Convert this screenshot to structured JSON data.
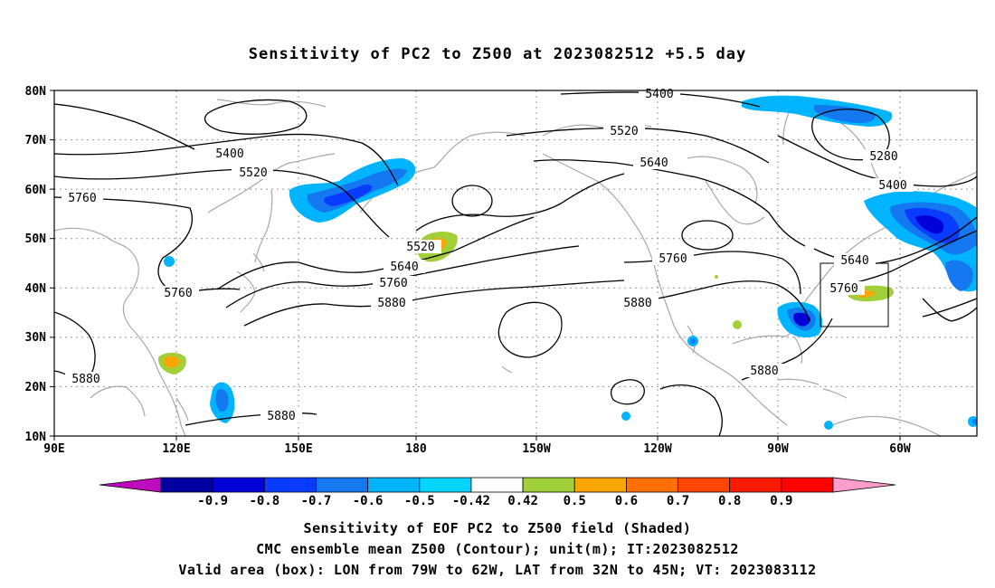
{
  "title": "Sensitivity of PC2 to Z500 at 2023082512 +5.5 day",
  "lat_labels": [
    "80N",
    "70N",
    "60N",
    "50N",
    "40N",
    "30N",
    "20N",
    "10N"
  ],
  "lon_labels": [
    "90E",
    "120E",
    "150E",
    "180",
    "150W",
    "120W",
    "90W",
    "60W"
  ],
  "contour_labels": [
    "5400",
    "5520",
    "5760",
    "5760",
    "5520",
    "5640",
    "5760",
    "5880",
    "5400",
    "5520",
    "5640",
    "5760",
    "5880",
    "5280",
    "5400",
    "5640",
    "5760",
    "5880",
    "5880",
    "5880"
  ],
  "colorbar": {
    "labels": [
      "-0.9",
      "-0.8",
      "-0.7",
      "-0.6",
      "-0.5",
      "-0.42",
      "0.42",
      "0.5",
      "0.6",
      "0.7",
      "0.8",
      "0.9"
    ],
    "colors": [
      "#be0bbe",
      "#0000a0",
      "#0000d8",
      "#0a3cff",
      "#1478f0",
      "#00b4ff",
      "#00d4ff",
      "#ffffff",
      "#a0cf3a",
      "#ffa500",
      "#ff7000",
      "#ff4500",
      "#ff1a00",
      "#ff0000",
      "#ff9ecc"
    ]
  },
  "valid_box": {
    "lon_w": "79W",
    "lon_e": "62W",
    "lat_s": "32N",
    "lat_n": "45N"
  },
  "captions": [
    "Sensitivity of EOF PC2 to Z500 field (Shaded)",
    "CMC ensemble mean Z500 (Contour); unit(m); IT:2023082512",
    "Valid area (box): LON from 79W to 62W, LAT from 32N to 45N; VT: 2023083112"
  ]
}
